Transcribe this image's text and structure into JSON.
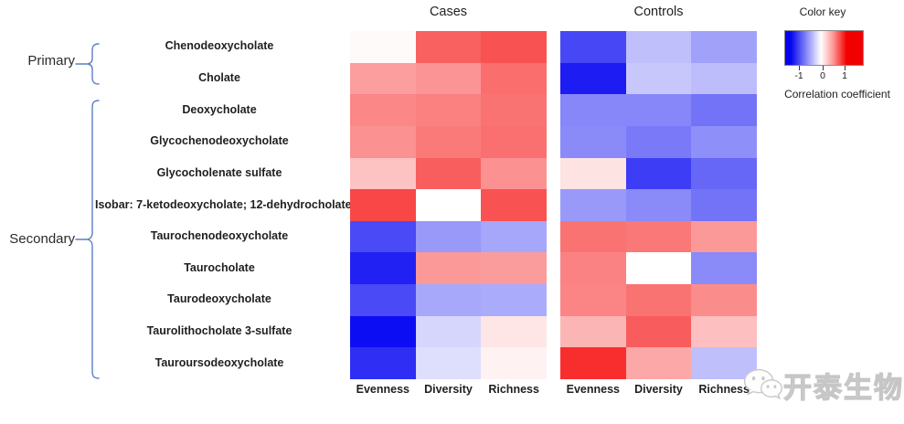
{
  "chart_data": {
    "type": "heatmap",
    "title": "",
    "rows": [
      "Chenodeoxycholate",
      "Cholate",
      "Deoxycholate",
      "Glycochenodeoxycholate",
      "Glycocholenate sulfate",
      "Isobar: 7-ketodeoxycholate;  12-dehydrocholate",
      "Taurochenodeoxycholate",
      "Taurocholate",
      "Taurodeoxycholate",
      "Taurolithocholate 3-sulfate",
      "Tauroursodeoxycholate"
    ],
    "row_groups": [
      {
        "label": "Primary",
        "rows": [
          "Chenodeoxycholate",
          "Cholate"
        ]
      },
      {
        "label": "Secondary",
        "rows": [
          "Deoxycholate",
          "Glycochenodeoxycholate",
          "Glycocholenate sulfate",
          "Isobar: 7-ketodeoxycholate;  12-dehydrocholate",
          "Taurochenodeoxycholate",
          "Taurocholate",
          "Taurodeoxycholate",
          "Taurolithocholate 3-sulfate",
          "Tauroursodeoxycholate"
        ]
      }
    ],
    "columns": [
      "Evenness",
      "Diversity",
      "Richness"
    ],
    "panels": [
      {
        "title": "Cases",
        "values": [
          [
            0.02,
            0.62,
            0.68
          ],
          [
            0.38,
            0.42,
            0.57
          ],
          [
            0.47,
            0.5,
            0.55
          ],
          [
            0.43,
            0.52,
            0.56
          ],
          [
            0.24,
            0.63,
            0.43
          ],
          [
            0.72,
            0.0,
            0.68
          ],
          [
            -0.71,
            -0.4,
            -0.35
          ],
          [
            -0.87,
            0.4,
            0.39
          ],
          [
            -0.71,
            -0.34,
            -0.33
          ],
          [
            -0.95,
            -0.16,
            0.1
          ],
          [
            -0.82,
            -0.13,
            0.05
          ]
        ]
      },
      {
        "title": "Controls",
        "values": [
          [
            -0.72,
            -0.25,
            -0.37
          ],
          [
            -0.89,
            -0.22,
            -0.26
          ],
          [
            -0.47,
            -0.47,
            -0.55
          ],
          [
            -0.46,
            -0.52,
            -0.44
          ],
          [
            0.11,
            -0.76,
            -0.6
          ],
          [
            -0.4,
            -0.46,
            -0.55
          ],
          [
            0.55,
            0.53,
            0.4
          ],
          [
            0.49,
            0.0,
            -0.46
          ],
          [
            0.48,
            0.55,
            0.45
          ],
          [
            0.29,
            0.64,
            0.25
          ],
          [
            0.82,
            0.34,
            -0.25
          ]
        ]
      }
    ],
    "colorscale": {
      "title": "Color key",
      "caption": "Correlation coefficient",
      "ticks": [
        "-1",
        "0",
        "1"
      ],
      "range": [
        -1,
        1
      ],
      "min_color": "#0404ee",
      "mid_color": "#ffffff",
      "max_color": "#f20000"
    },
    "legend_position": "top-right",
    "grid": false
  },
  "accents": {
    "brace_color": "#5b7ec6",
    "text_color": "#1f1f1f"
  },
  "watermark": {
    "text": "开泰生物",
    "icon": "wechat-logo-icon"
  }
}
